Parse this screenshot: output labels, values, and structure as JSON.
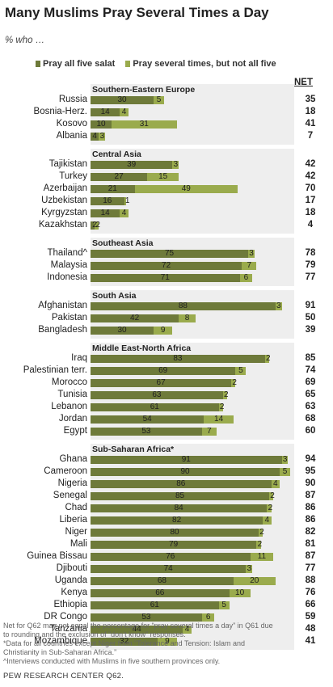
{
  "title": "Many Muslims Pray Several Times a Day",
  "subtitle": "% who …",
  "net_label": "NET",
  "chart_data": {
    "type": "bar",
    "orientation": "horizontal",
    "stacked": true,
    "xlim": [
      0,
      100
    ],
    "legend": [
      {
        "name": "Pray all five salat",
        "color": "#6e7a3a"
      },
      {
        "name": "Pray several times, but not all five",
        "color": "#9aab4d"
      }
    ],
    "legend_placement": "top",
    "groups": [
      {
        "name": "Southern-Eastern Europe",
        "rows": [
          {
            "country": "Russia",
            "five": 30,
            "several": 5,
            "net": 35
          },
          {
            "country": "Bosnia-Herz.",
            "five": 14,
            "several": 4,
            "net": 18
          },
          {
            "country": "Kosovo",
            "five": 10,
            "several": 31,
            "net": 41
          },
          {
            "country": "Albania",
            "five": 4,
            "several": 3,
            "net": 7
          }
        ]
      },
      {
        "name": "Central Asia",
        "rows": [
          {
            "country": "Tajikistan",
            "five": 39,
            "several": 3,
            "net": 42
          },
          {
            "country": "Turkey",
            "five": 27,
            "several": 15,
            "net": 42
          },
          {
            "country": "Azerbaijan",
            "five": 21,
            "several": 49,
            "net": 70
          },
          {
            "country": "Uzbekistan",
            "five": 16,
            "several": 1,
            "net": 17
          },
          {
            "country": "Kyrgyzstan",
            "five": 14,
            "several": 4,
            "net": 18
          },
          {
            "country": "Kazakhstan",
            "five": 2,
            "several": 2,
            "net": 4
          }
        ]
      },
      {
        "name": "Southeast Asia",
        "rows": [
          {
            "country": "Thailand^",
            "five": 75,
            "several": 3,
            "net": 78
          },
          {
            "country": "Malaysia",
            "five": 72,
            "several": 7,
            "net": 79
          },
          {
            "country": "Indonesia",
            "five": 71,
            "several": 6,
            "net": 77
          }
        ]
      },
      {
        "name": "South Asia",
        "rows": [
          {
            "country": "Afghanistan",
            "five": 88,
            "several": 3,
            "net": 91
          },
          {
            "country": "Pakistan",
            "five": 42,
            "several": 8,
            "net": 50
          },
          {
            "country": "Bangladesh",
            "five": 30,
            "several": 9,
            "net": 39
          }
        ]
      },
      {
        "name": "Middle East-North Africa",
        "rows": [
          {
            "country": "Iraq",
            "five": 83,
            "several": 2,
            "net": 85
          },
          {
            "country": "Palestinian terr.",
            "five": 69,
            "several": 5,
            "net": 74
          },
          {
            "country": "Morocco",
            "five": 67,
            "several": 2,
            "net": 69
          },
          {
            "country": "Tunisia",
            "five": 63,
            "several": 2,
            "net": 65
          },
          {
            "country": "Lebanon",
            "five": 61,
            "several": 2,
            "net": 63
          },
          {
            "country": "Jordan",
            "five": 54,
            "several": 14,
            "net": 68
          },
          {
            "country": "Egypt",
            "five": 53,
            "several": 7,
            "net": 60
          }
        ]
      },
      {
        "name": "Sub-Saharan Africa*",
        "rows": [
          {
            "country": "Ghana",
            "five": 91,
            "several": 3,
            "net": 94
          },
          {
            "country": "Cameroon",
            "five": 90,
            "several": 5,
            "net": 95
          },
          {
            "country": "Nigeria",
            "five": 86,
            "several": 4,
            "net": 90
          },
          {
            "country": "Senegal",
            "five": 85,
            "several": 2,
            "net": 87
          },
          {
            "country": "Chad",
            "five": 84,
            "several": 2,
            "net": 86
          },
          {
            "country": "Liberia",
            "five": 82,
            "several": 4,
            "net": 86
          },
          {
            "country": "Niger",
            "five": 80,
            "several": 2,
            "net": 82
          },
          {
            "country": "Mali",
            "five": 79,
            "several": 2,
            "net": 81
          },
          {
            "country": "Guinea Bissau",
            "five": 76,
            "several": 11,
            "net": 87
          },
          {
            "country": "Djibouti",
            "five": 74,
            "several": 3,
            "net": 77
          },
          {
            "country": "Uganda",
            "five": 68,
            "several": 20,
            "net": 88
          },
          {
            "country": "Kenya",
            "five": 66,
            "several": 10,
            "net": 76
          },
          {
            "country": "Ethiopia",
            "five": 61,
            "several": 5,
            "net": 66
          },
          {
            "country": "DR Congo",
            "five": 53,
            "several": 6,
            "net": 59
          },
          {
            "country": "Tanzania",
            "five": 44,
            "several": 4,
            "net": 48
          },
          {
            "country": "Mozambique",
            "five": 32,
            "several": 9,
            "net": 41
          }
        ]
      }
    ]
  },
  "footnotes": [
    "Net for Q62 may not equal the percentage for “pray several times a day” in Q61 due",
    "to rounding and the exclusion of “don’t know” responses.",
    "*Data for all countries except Niger from “Tolerance and Tension: Islam and",
    "Christianity in Sub-Saharan Africa.”",
    "^Interviews conducted with Muslims in five southern provinces only."
  ],
  "source": "PEW RESEARCH CENTER Q62."
}
